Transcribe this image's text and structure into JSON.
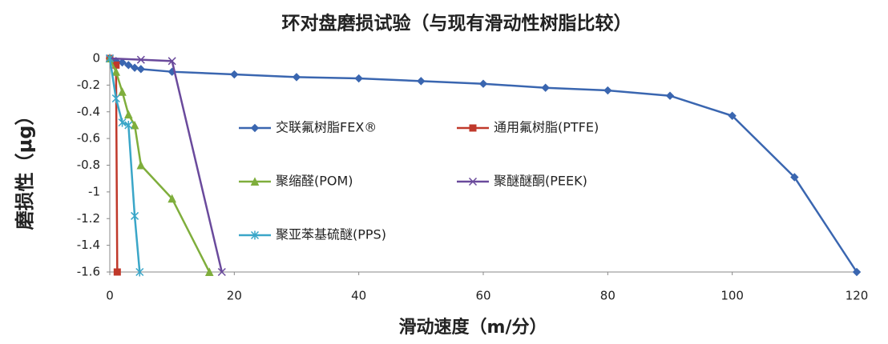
{
  "chart_data": {
    "type": "line",
    "title": "环对盘磨损试验（与现有滑动性树脂比较）",
    "x_label": "滑动速度（m/分）",
    "y_label": "磨损性（μg）",
    "xlim": [
      0,
      120
    ],
    "xticks": [
      0,
      20,
      40,
      60,
      80,
      100,
      120
    ],
    "ylim": [
      -1.6,
      0
    ],
    "yticks": [
      0,
      -0.2,
      -0.4,
      -0.6,
      -0.8,
      -1,
      -1.2,
      -1.4,
      -1.6
    ],
    "grid": false,
    "legend": "center",
    "series": [
      {
        "name": "交联氟树脂FEX®",
        "color": "#3a66b0",
        "marker": "diamond",
        "x": [
          0,
          1,
          2,
          3,
          4,
          5,
          10,
          20,
          30,
          40,
          50,
          60,
          70,
          80,
          90,
          100,
          110,
          120
        ],
        "values": [
          0,
          -0.02,
          -0.03,
          -0.05,
          -0.07,
          -0.08,
          -0.1,
          -0.12,
          -0.14,
          -0.15,
          -0.17,
          -0.19,
          -0.22,
          -0.24,
          -0.28,
          -0.43,
          -0.89,
          -1.6
        ]
      },
      {
        "name": "通用氟树脂(PTFE)",
        "color": "#c0392b",
        "marker": "square",
        "x": [
          0,
          1,
          1.2
        ],
        "values": [
          0,
          -0.05,
          -1.6
        ]
      },
      {
        "name": "聚缩醛(POM)",
        "color": "#7fae3c",
        "marker": "triangle",
        "x": [
          0,
          1,
          2,
          3,
          4,
          5,
          10,
          16
        ],
        "values": [
          0,
          -0.1,
          -0.25,
          -0.42,
          -0.5,
          -0.8,
          -1.05,
          -1.6
        ]
      },
      {
        "name": "聚醚醚酮(PEEK)",
        "color": "#6a4a9c",
        "marker": "x",
        "x": [
          0,
          5,
          10,
          18
        ],
        "values": [
          0,
          -0.01,
          -0.02,
          -1.6
        ]
      },
      {
        "name": "聚亚苯基硫醚(PPS)",
        "color": "#3aa6c8",
        "marker": "star",
        "x": [
          0,
          1,
          2,
          3,
          4,
          4.8
        ],
        "values": [
          0,
          -0.3,
          -0.48,
          -0.5,
          -1.18,
          -1.6
        ]
      }
    ]
  }
}
